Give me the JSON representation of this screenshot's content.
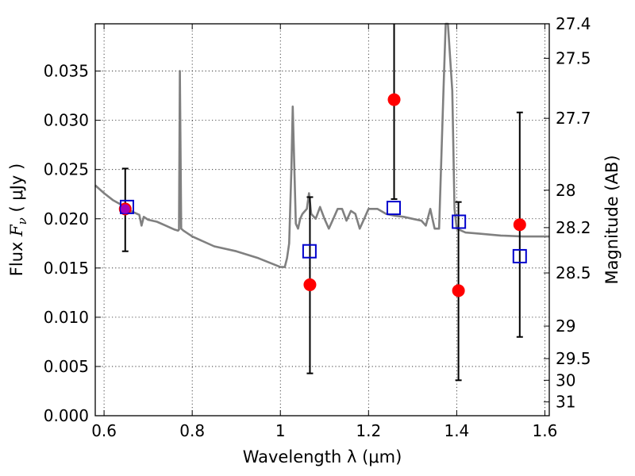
{
  "chart_data": {
    "type": "scatter",
    "title": "",
    "xlabel": "Wavelength  λ (μm)",
    "ylabel_left": {
      "prefix": "Flux  ",
      "symbol": "F",
      "sub": "ν",
      "suffix": "  ( μJy )"
    },
    "ylabel_right": "Magnitude (AB)",
    "xlim": [
      0.58,
      1.61
    ],
    "ylim": [
      0.0,
      0.0398
    ],
    "x_ticks": [
      0.6,
      0.8,
      1.0,
      1.2,
      1.4,
      1.6
    ],
    "x_tick_labels": [
      "0.6",
      "0.8",
      "1",
      "1.2",
      "1.4",
      "1.6"
    ],
    "y_ticks": [
      0.0,
      0.005,
      0.01,
      0.015,
      0.02,
      0.025,
      0.03,
      0.035
    ],
    "y_tick_labels": [
      "0.000",
      "0.005",
      "0.010",
      "0.015",
      "0.020",
      "0.025",
      "0.030",
      "0.035"
    ],
    "right_ticks": [
      {
        "label": "27.4",
        "flux": 0.0398
      },
      {
        "label": "27.5",
        "flux": 0.0363
      },
      {
        "label": "27.7",
        "flux": 0.0302
      },
      {
        "label": "28",
        "flux": 0.0229
      },
      {
        "label": "28.2",
        "flux": 0.0191
      },
      {
        "label": "28.5",
        "flux": 0.0145
      },
      {
        "label": "29",
        "flux": 0.0091
      },
      {
        "label": "29.5",
        "flux": 0.0058
      },
      {
        "label": "30",
        "flux": 0.0036
      },
      {
        "label": "31",
        "flux": 0.0014
      }
    ],
    "grid": true,
    "series": [
      {
        "name": "model spectrum",
        "kind": "line",
        "color": "#808080",
        "x": [
          0.58,
          0.6,
          0.62,
          0.64,
          0.65,
          0.66,
          0.67,
          0.68,
          0.685,
          0.69,
          0.7,
          0.72,
          0.74,
          0.75,
          0.76,
          0.768,
          0.77,
          0.772,
          0.775,
          0.78,
          0.8,
          0.85,
          0.9,
          0.95,
          1.0,
          1.01,
          1.015,
          1.02,
          1.025,
          1.028,
          1.03,
          1.035,
          1.04,
          1.045,
          1.05,
          1.06,
          1.065,
          1.07,
          1.08,
          1.09,
          1.1,
          1.11,
          1.12,
          1.13,
          1.14,
          1.15,
          1.16,
          1.17,
          1.18,
          1.19,
          1.2,
          1.22,
          1.24,
          1.26,
          1.28,
          1.3,
          1.32,
          1.33,
          1.34,
          1.345,
          1.35,
          1.36,
          1.37,
          1.375,
          1.38,
          1.39,
          1.395,
          1.4,
          1.42,
          1.45,
          1.5,
          1.55,
          1.6,
          1.61
        ],
        "y": [
          0.0234,
          0.0226,
          0.0219,
          0.0214,
          0.0212,
          0.0208,
          0.0206,
          0.0204,
          0.0193,
          0.0202,
          0.0199,
          0.0197,
          0.0193,
          0.0191,
          0.0189,
          0.0188,
          0.0189,
          0.035,
          0.019,
          0.0188,
          0.0182,
          0.0172,
          0.0167,
          0.016,
          0.0151,
          0.0151,
          0.016,
          0.0175,
          0.025,
          0.0314,
          0.028,
          0.0195,
          0.019,
          0.02,
          0.0205,
          0.021,
          0.0226,
          0.0205,
          0.02,
          0.0212,
          0.02,
          0.019,
          0.02,
          0.021,
          0.021,
          0.0198,
          0.0208,
          0.0205,
          0.019,
          0.02,
          0.021,
          0.021,
          0.0205,
          0.0203,
          0.0202,
          0.02,
          0.0198,
          0.0193,
          0.021,
          0.02,
          0.019,
          0.019,
          0.033,
          0.0398,
          0.0398,
          0.033,
          0.021,
          0.019,
          0.0186,
          0.0185,
          0.0183,
          0.0182,
          0.0182,
          0.0182
        ]
      },
      {
        "name": "observed photometry",
        "kind": "points",
        "color": "#ff0000",
        "x": [
          0.648,
          1.067,
          1.258,
          1.404,
          1.543
        ],
        "y": [
          0.021,
          0.0133,
          0.0321,
          0.0127,
          0.0194
        ],
        "yerr_low": [
          0.0043,
          0.009,
          0.0101,
          0.0091,
          0.0114
        ],
        "yerr_high": [
          0.0041,
          0.0089,
          0.01,
          0.009,
          0.0114
        ]
      },
      {
        "name": "model photometry",
        "kind": "open squares",
        "color": "#0000cc",
        "x": [
          0.652,
          1.066,
          1.257,
          1.405,
          1.543
        ],
        "y": [
          0.0212,
          0.0167,
          0.0211,
          0.0197,
          0.0162
        ]
      }
    ]
  }
}
